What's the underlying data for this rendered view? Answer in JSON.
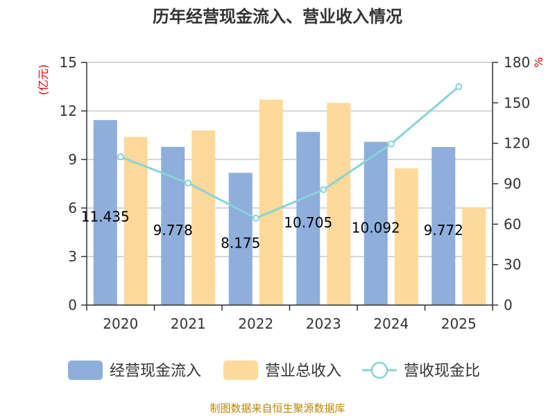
{
  "chart_data": {
    "type": "bar",
    "title": "历年经营现金流入、营业收入情况",
    "categories": [
      "2020",
      "2021",
      "2022",
      "2023",
      "2024",
      "2025"
    ],
    "y_left": {
      "unit": "(亿元)",
      "ylim": [
        0,
        15
      ],
      "ticks": [
        "0",
        "3",
        "6",
        "9",
        "12",
        "15"
      ]
    },
    "y_right": {
      "unit": "%",
      "ylim": [
        0,
        180
      ],
      "ticks": [
        "0",
        "30",
        "60",
        "90",
        "120",
        "150",
        "180"
      ]
    },
    "grid": true,
    "legend_position": "bottom",
    "series": [
      {
        "name": "经营现金流入",
        "type": "bar",
        "axis": "left",
        "color": "#8eaedb",
        "values": [
          11.435,
          9.778,
          8.175,
          10.705,
          10.092,
          9.772
        ],
        "labels": [
          "11.435",
          "9.778",
          "8.175",
          "10.705",
          "10.092",
          "9.772"
        ]
      },
      {
        "name": "营业总收入",
        "type": "bar",
        "axis": "left",
        "color": "#fdd99b",
        "values": [
          10.4,
          10.8,
          12.7,
          12.5,
          8.45,
          6.05
        ]
      },
      {
        "name": "营收现金比",
        "type": "line",
        "axis": "right",
        "color": "#88d3d7",
        "values": [
          110,
          90.5,
          64.4,
          85.6,
          119.5,
          162
        ]
      }
    ]
  },
  "source": "制图数据来自恒生聚源数据库"
}
